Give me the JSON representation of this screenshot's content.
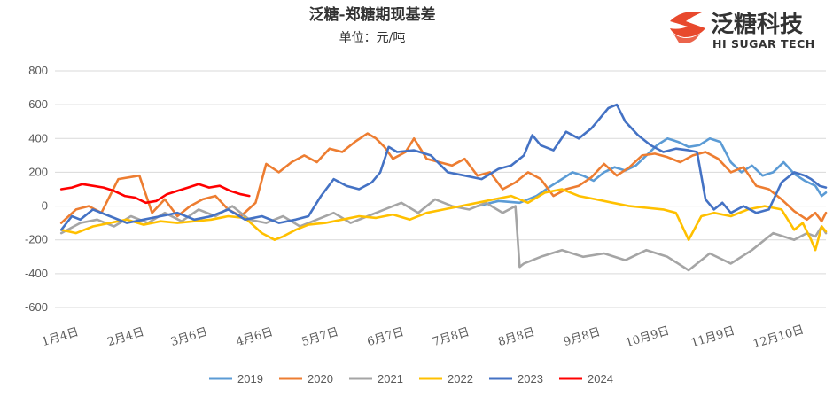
{
  "chart_data": {
    "type": "line",
    "title": "泛糖-郑糖期现基差",
    "subtitle": "单位：元/吨",
    "ylim": [
      -600,
      800
    ],
    "yticks": [
      800,
      600,
      400,
      200,
      0,
      -200,
      -400,
      -600
    ],
    "x_domain": [
      0,
      365
    ],
    "xticks": [
      {
        "label": "1月4日",
        "day": 3
      },
      {
        "label": "2月4日",
        "day": 34
      },
      {
        "label": "3月6日",
        "day": 64
      },
      {
        "label": "4月6日",
        "day": 95
      },
      {
        "label": "5月7日",
        "day": 126
      },
      {
        "label": "6月7日",
        "day": 157
      },
      {
        "label": "7月8日",
        "day": 188
      },
      {
        "label": "8月8日",
        "day": 219
      },
      {
        "label": "9月8日",
        "day": 250
      },
      {
        "label": "10月9日",
        "day": 281
      },
      {
        "label": "11月9日",
        "day": 312
      },
      {
        "label": "12月10日",
        "day": 343
      }
    ],
    "grid": true,
    "legend": "bottom",
    "series": [
      {
        "name": "2019",
        "color": "#5b9bd5",
        "x": [
          200,
          210,
          220,
          228,
          235,
          240,
          245,
          250,
          255,
          260,
          265,
          270,
          275,
          280,
          285,
          290,
          295,
          300,
          305,
          310,
          315,
          320,
          325,
          330,
          335,
          340,
          345,
          350,
          355,
          360,
          363,
          365
        ],
        "y": [
          0,
          30,
          20,
          60,
          120,
          160,
          200,
          180,
          150,
          200,
          230,
          210,
          240,
          300,
          360,
          400,
          380,
          350,
          360,
          400,
          380,
          260,
          200,
          240,
          180,
          200,
          260,
          190,
          150,
          120,
          60,
          80
        ]
      },
      {
        "name": "2020",
        "color": "#ed7d31",
        "x": [
          3,
          10,
          16,
          22,
          30,
          40,
          46,
          52,
          58,
          64,
          70,
          76,
          82,
          88,
          95,
          100,
          106,
          112,
          118,
          124,
          130,
          136,
          142,
          148,
          152,
          156,
          160,
          166,
          170,
          176,
          182,
          188,
          194,
          200,
          206,
          212,
          218,
          224,
          230,
          236,
          242,
          248,
          254,
          260,
          266,
          272,
          278,
          284,
          290,
          296,
          302,
          308,
          314,
          320,
          326,
          332,
          338,
          344,
          350,
          356,
          360,
          363,
          365
        ],
        "y": [
          -100,
          -20,
          0,
          -40,
          160,
          180,
          -40,
          40,
          -60,
          0,
          40,
          60,
          -20,
          -60,
          20,
          250,
          200,
          260,
          300,
          260,
          340,
          320,
          380,
          430,
          400,
          350,
          280,
          320,
          400,
          280,
          260,
          240,
          280,
          180,
          200,
          100,
          140,
          200,
          160,
          60,
          100,
          120,
          170,
          250,
          180,
          230,
          300,
          310,
          290,
          260,
          300,
          320,
          280,
          200,
          230,
          120,
          100,
          40,
          -30,
          -80,
          -40,
          -90,
          -40
        ]
      },
      {
        "name": "2021",
        "color": "#a5a5a5",
        "x": [
          3,
          12,
          20,
          28,
          36,
          44,
          52,
          60,
          68,
          76,
          84,
          92,
          100,
          108,
          116,
          124,
          132,
          140,
          148,
          156,
          164,
          172,
          180,
          188,
          196,
          204,
          212,
          218,
          220,
          222,
          230,
          240,
          250,
          260,
          270,
          280,
          290,
          300,
          310,
          320,
          330,
          340,
          350,
          356,
          360,
          363,
          365
        ],
        "y": [
          -160,
          -100,
          -80,
          -120,
          -60,
          -100,
          -40,
          -90,
          -20,
          -60,
          0,
          -80,
          -100,
          -60,
          -120,
          -80,
          -40,
          -100,
          -60,
          -20,
          20,
          -40,
          40,
          0,
          -20,
          20,
          -40,
          0,
          -360,
          -340,
          -300,
          -260,
          -300,
          -280,
          -320,
          -260,
          -300,
          -380,
          -280,
          -340,
          -260,
          -160,
          -200,
          -160,
          -180,
          -120,
          -160
        ]
      },
      {
        "name": "2022",
        "color": "#ffc000",
        "x": [
          3,
          10,
          18,
          26,
          34,
          42,
          50,
          58,
          66,
          74,
          82,
          90,
          98,
          104,
          108,
          114,
          120,
          128,
          136,
          144,
          152,
          160,
          168,
          176,
          184,
          192,
          200,
          208,
          216,
          224,
          232,
          240,
          248,
          256,
          264,
          272,
          280,
          288,
          294,
          300,
          306,
          312,
          320,
          328,
          336,
          344,
          350,
          354,
          358,
          360,
          363,
          365
        ],
        "y": [
          -140,
          -160,
          -120,
          -100,
          -80,
          -110,
          -90,
          -100,
          -90,
          -80,
          -60,
          -70,
          -160,
          -200,
          -180,
          -140,
          -110,
          -100,
          -80,
          -60,
          -70,
          -50,
          -80,
          -40,
          -20,
          0,
          20,
          40,
          60,
          20,
          80,
          100,
          60,
          40,
          20,
          0,
          -10,
          -20,
          -40,
          -200,
          -60,
          -40,
          -60,
          -20,
          0,
          -20,
          -140,
          -100,
          -200,
          -260,
          -120,
          -150
        ]
      },
      {
        "name": "2023",
        "color": "#4472c4",
        "x": [
          3,
          8,
          12,
          18,
          26,
          34,
          42,
          50,
          58,
          66,
          74,
          82,
          90,
          98,
          106,
          114,
          120,
          126,
          132,
          138,
          144,
          150,
          154,
          158,
          162,
          170,
          178,
          186,
          194,
          202,
          210,
          216,
          222,
          226,
          230,
          236,
          242,
          248,
          254,
          258,
          262,
          266,
          270,
          276,
          282,
          288,
          294,
          300,
          304,
          308,
          312,
          316,
          320,
          326,
          332,
          338,
          344,
          350,
          355,
          358,
          362,
          365
        ],
        "y": [
          -140,
          -60,
          -80,
          -20,
          -60,
          -100,
          -80,
          -60,
          -40,
          -80,
          -60,
          -20,
          -80,
          -60,
          -100,
          -80,
          -60,
          60,
          160,
          120,
          100,
          140,
          200,
          350,
          320,
          330,
          300,
          200,
          180,
          160,
          220,
          240,
          300,
          420,
          360,
          330,
          440,
          400,
          460,
          520,
          580,
          600,
          500,
          420,
          360,
          320,
          340,
          330,
          320,
          40,
          -20,
          20,
          -40,
          0,
          -40,
          -20,
          140,
          200,
          180,
          160,
          120,
          110
        ]
      },
      {
        "name": "2024",
        "color": "#ff0000",
        "x": [
          3,
          8,
          13,
          18,
          23,
          28,
          33,
          38,
          43,
          48,
          53,
          58,
          63,
          68,
          73,
          78,
          83,
          88,
          92
        ],
        "y": [
          100,
          110,
          130,
          120,
          110,
          90,
          60,
          50,
          20,
          30,
          70,
          90,
          110,
          130,
          110,
          120,
          90,
          70,
          60
        ]
      }
    ]
  },
  "logo": {
    "cn": "泛糖科技",
    "en": "HI SUGAR TECH",
    "accent": "#e8492d"
  }
}
